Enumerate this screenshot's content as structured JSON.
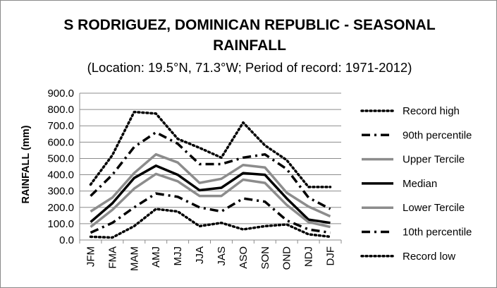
{
  "chart_data": {
    "type": "line",
    "title": "S RODRIGUEZ, DOMINICAN REPUBLIC - SEASONAL RAINFALL",
    "title_line1": "S RODRIGUEZ, DOMINICAN REPUBLIC - SEASONAL",
    "title_line2": "RAINFALL",
    "subtitle": "(Location: 19.5°N, 71.3°W; Period of record: 1971-2012)",
    "xlabel": "",
    "ylabel": "RAINFALL (mm)",
    "ylim": [
      0,
      900
    ],
    "yticks": [
      "0.0",
      "100.0",
      "200.0",
      "300.0",
      "400.0",
      "500.0",
      "600.0",
      "700.0",
      "800.0",
      "900.0"
    ],
    "categories": [
      "JFM",
      "FMA",
      "MAM",
      "AMJ",
      "MJJ",
      "JJA",
      "JAS",
      "ASO",
      "SON",
      "OND",
      "NDJ",
      "DJF"
    ],
    "grid": true,
    "legend_position": "right",
    "series": [
      {
        "name": "Record high",
        "style": "dotted",
        "color": "#000000",
        "values": [
          340,
          520,
          785,
          775,
          620,
          565,
          505,
          720,
          580,
          490,
          325,
          325
        ]
      },
      {
        "name": "90th percentile",
        "style": "dashdot",
        "color": "#000000",
        "values": [
          270,
          400,
          570,
          660,
          590,
          465,
          465,
          505,
          525,
          435,
          260,
          190
        ]
      },
      {
        "name": "Upper Tercile",
        "style": "solid",
        "color": "#8c8c8c",
        "values": [
          175,
          260,
          410,
          525,
          475,
          350,
          375,
          460,
          445,
          290,
          205,
          145
        ]
      },
      {
        "name": "Median",
        "style": "solid",
        "color": "#000000",
        "values": [
          110,
          225,
          380,
          455,
          400,
          305,
          320,
          410,
          400,
          255,
          125,
          105
        ]
      },
      {
        "name": "Lower Tercile",
        "style": "solid",
        "color": "#8c8c8c",
        "values": [
          80,
          185,
          315,
          405,
          360,
          270,
          270,
          370,
          350,
          215,
          110,
          80
        ]
      },
      {
        "name": "10th percentile",
        "style": "dashdot",
        "color": "#000000",
        "values": [
          45,
          105,
          200,
          285,
          265,
          200,
          175,
          255,
          235,
          120,
          65,
          45
        ]
      },
      {
        "name": "Record low",
        "style": "dotted",
        "color": "#000000",
        "values": [
          20,
          15,
          85,
          190,
          175,
          85,
          105,
          65,
          85,
          95,
          35,
          20
        ]
      }
    ]
  }
}
